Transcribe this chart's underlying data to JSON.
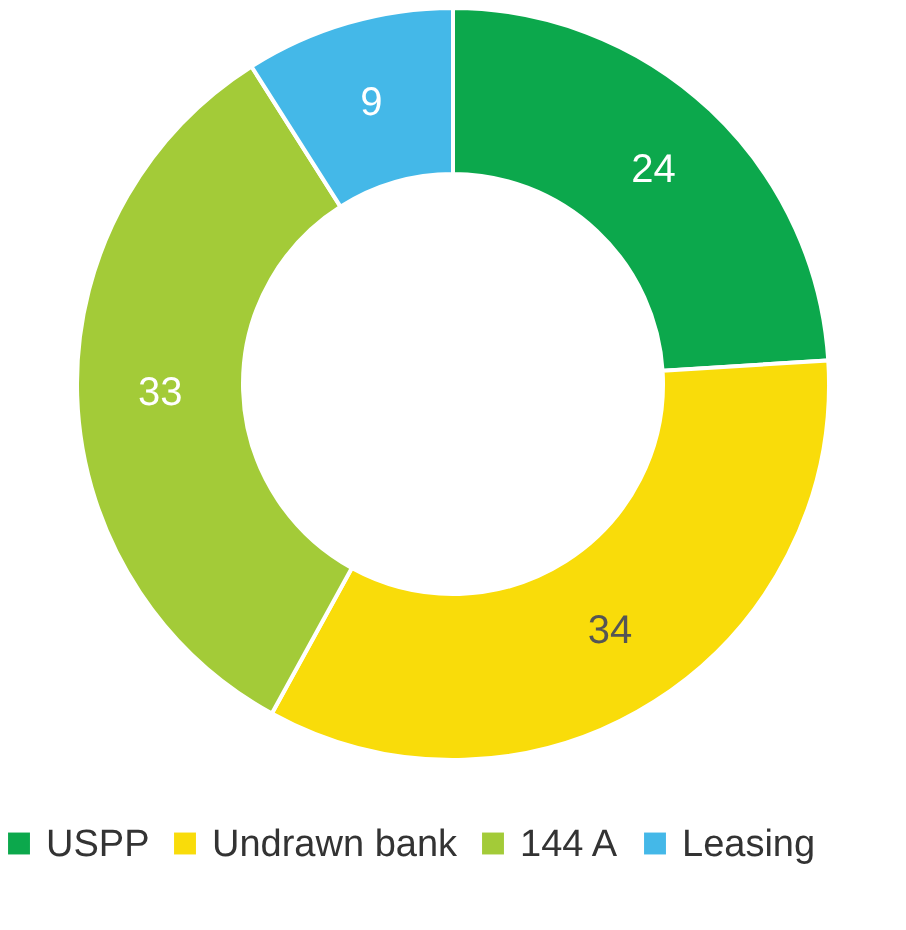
{
  "chart_data": {
    "type": "donut",
    "categories": [
      "USPP",
      "Undrawn bank",
      "144 A",
      "Leasing"
    ],
    "values": [
      24,
      34,
      33,
      9
    ],
    "colors": [
      "#0ca84c",
      "#f9dc0a",
      "#a3cb38",
      "#44b8e8"
    ],
    "data_labels": true,
    "legend": "bottom"
  }
}
